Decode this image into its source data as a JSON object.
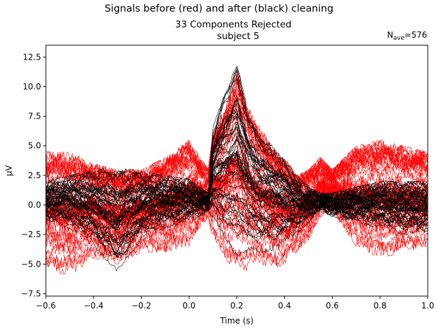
{
  "chart_data": {
    "type": "line",
    "suptitle": "Signals before (red) and after (black) cleaning",
    "title_line1": "33 Components Rejected",
    "title_line2": "subject 5",
    "nave_label": "N",
    "nave_sub": "ave",
    "nave_value": "=576",
    "xlabel": "Time (s)",
    "ylabel": "µV",
    "xlim": [
      -0.6,
      1.0
    ],
    "ylim": [
      -7.7,
      13.5
    ],
    "x_ticks": [
      -0.6,
      -0.4,
      -0.2,
      0.0,
      0.2,
      0.4,
      0.6,
      0.8,
      1.0
    ],
    "x_tick_labels": [
      "−0.6",
      "−0.4",
      "−0.2",
      "0.0",
      "0.2",
      "0.4",
      "0.6",
      "0.8",
      "1.0"
    ],
    "y_ticks": [
      -7.5,
      -5.0,
      -2.5,
      0.0,
      2.5,
      5.0,
      7.5,
      10.0,
      12.5
    ],
    "y_tick_labels": [
      "−7.5",
      "−5.0",
      "−2.5",
      "0.0",
      "2.5",
      "5.0",
      "7.5",
      "10.0",
      "12.5"
    ],
    "grid": false,
    "series": [
      {
        "name": "before cleaning",
        "color": "#ff0000",
        "num_channels": 60,
        "x": [
          -0.6,
          -0.5,
          -0.4,
          -0.3,
          -0.2,
          -0.1,
          0.0,
          0.08,
          0.1,
          0.15,
          0.2,
          0.25,
          0.3,
          0.35,
          0.4,
          0.45,
          0.5,
          0.55,
          0.6,
          0.7,
          0.8,
          0.9,
          1.0
        ],
        "upper_envelope": [
          4.5,
          4.5,
          3.5,
          3.0,
          3.0,
          4.0,
          5.5,
          3.0,
          6.0,
          8.5,
          12.0,
          8.5,
          6.5,
          5.0,
          4.0,
          2.5,
          3.0,
          4.0,
          3.0,
          5.0,
          5.5,
          5.0,
          4.5
        ],
        "lower_envelope": [
          -5.5,
          -6.0,
          -4.5,
          -5.0,
          -4.0,
          -4.0,
          -3.5,
          -1.0,
          -3.0,
          -5.0,
          -6.0,
          -5.5,
          -5.0,
          -5.5,
          -5.0,
          -4.0,
          -3.0,
          -1.0,
          -0.5,
          -3.5,
          -4.5,
          -4.0,
          -3.5
        ]
      },
      {
        "name": "after cleaning",
        "color": "#000000",
        "num_channels": 60,
        "x": [
          -0.6,
          -0.5,
          -0.4,
          -0.3,
          -0.2,
          -0.1,
          0.0,
          0.08,
          0.1,
          0.15,
          0.2,
          0.25,
          0.3,
          0.35,
          0.4,
          0.45,
          0.5,
          0.55,
          0.6,
          0.7,
          0.8,
          0.9,
          1.0
        ],
        "upper_envelope": [
          2.0,
          2.5,
          3.0,
          3.2,
          2.8,
          2.5,
          2.2,
          1.0,
          6.5,
          10.0,
          12.5,
          8.0,
          6.0,
          5.0,
          4.0,
          2.5,
          1.5,
          1.0,
          1.0,
          1.5,
          2.0,
          2.0,
          2.0
        ],
        "lower_envelope": [
          -1.5,
          -2.0,
          -3.5,
          -6.2,
          -3.0,
          -2.0,
          -1.5,
          -0.5,
          -1.5,
          -3.5,
          -5.0,
          -4.5,
          -4.5,
          -4.0,
          -3.5,
          -2.5,
          -1.5,
          -0.5,
          -1.0,
          -1.5,
          -2.0,
          -2.5,
          -2.5
        ]
      }
    ]
  }
}
